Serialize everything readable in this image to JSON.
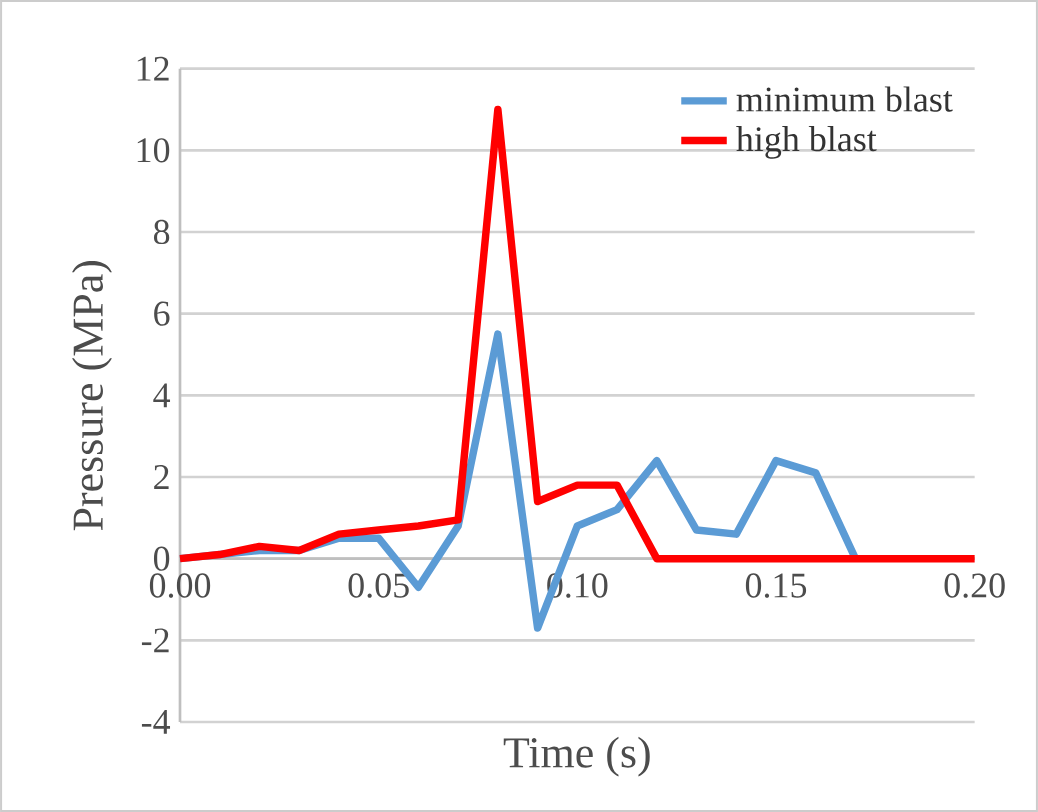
{
  "chart_data": {
    "type": "line",
    "xlabel": "Time (s)",
    "ylabel": "Pressure (MPa)",
    "x": [
      0,
      0.01,
      0.02,
      0.03,
      0.04,
      0.05,
      0.06,
      0.07,
      0.08,
      0.09,
      0.1,
      0.11,
      0.12,
      0.13,
      0.14,
      0.15,
      0.16,
      0.17,
      0.18,
      0.19,
      0.2
    ],
    "series": [
      {
        "name": "minimum blast",
        "color": "#5b9bd5",
        "values": [
          0,
          0.1,
          0.2,
          0.2,
          0.5,
          0.5,
          -0.7,
          0.8,
          5.5,
          -1.7,
          0.8,
          1.2,
          2.4,
          0.7,
          0.6,
          2.4,
          2.1,
          0,
          null,
          null,
          null
        ]
      },
      {
        "name": "high blast",
        "color": "#ff0000",
        "values": [
          0,
          0.1,
          0.3,
          0.2,
          0.6,
          0.7,
          0.8,
          0.95,
          11,
          1.4,
          1.8,
          1.8,
          0,
          0,
          0,
          0,
          0,
          0,
          0,
          0,
          0
        ]
      }
    ],
    "xlim": [
      0,
      0.2
    ],
    "xticks": [
      {
        "value": 0,
        "label": "0.00"
      },
      0.05,
      {
        "value": 0.1,
        "label": "0.10"
      },
      0.15,
      {
        "value": 0.2,
        "label": "0.20"
      }
    ],
    "ylim": [
      -4,
      12
    ],
    "yticks": [
      -4,
      -2,
      0,
      2,
      4,
      6,
      8,
      10,
      12
    ],
    "grid": "y",
    "legend": "top right",
    "marker": "none",
    "line_style": "solid"
  }
}
